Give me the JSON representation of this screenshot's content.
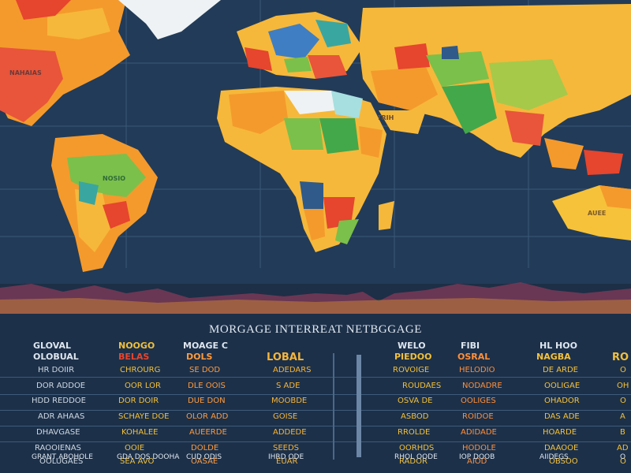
{
  "map": {
    "labels": {
      "north_america": "NAHAIAS",
      "south_america": "NOSIO",
      "middle_east": "TRIH",
      "australia": "AUEE"
    },
    "colors": {
      "ocean": "#223b58",
      "grid": "#3a5878",
      "orange": "#f49a2c",
      "red": "#e6452e",
      "yellow": "#f6b83a",
      "green": "#7bc04a",
      "teal": "#3aa6a0",
      "blue": "#3f7ec2",
      "white": "#eef2f4"
    }
  },
  "table": {
    "title": "MORGAGE INTERREAT NETBGGAGE",
    "columns": [
      {
        "header": "GLOVAL",
        "subheader": "OLOBUAL",
        "color": "#dfe6ef",
        "rows": [
          "HR DOIIR",
          "DOR ADDOE",
          "HDD REDDOE",
          "ADR AHAAS",
          "DHAVGASE",
          "RAOOIENAS",
          "OOLUGAES"
        ]
      },
      {
        "header": "NOOGO",
        "subheader": "BELAS",
        "color": "#f2c03a",
        "rows": [
          "CHROURG",
          "OOR LOR",
          "DOR DOIR",
          "SCHAYE DOE",
          "KOHALEE",
          "OOIE",
          "SEA AVO"
        ]
      },
      {
        "header": "MOAGE C",
        "subheader": "DOLS",
        "color": "#ff9b3d",
        "rows": [
          "SE DOD",
          "DLE OOIS",
          "DUE DON",
          "OLOR ADD",
          "AUEERDE",
          "DOLDE",
          "OASAE"
        ]
      },
      {
        "header": "",
        "subheader": "LOBAL",
        "color": "#f6b53a",
        "rows": [
          "ADEDARS",
          "S ADE",
          "MOOBDE",
          "GOISE",
          "ADDEDE",
          "SEEDS",
          "EUAR"
        ]
      },
      {
        "header": "WELO",
        "subheader": "PIEDOO",
        "color": "#f2c03a",
        "rows": [
          "ROVOIGE",
          "ROUDAES",
          "OSVA DE",
          "ASBOD",
          "RROLDE",
          "OORHDS",
          "RADOR"
        ]
      },
      {
        "header": "FIBI",
        "subheader": "OSRAL",
        "color": "#ff8f3a",
        "rows": [
          "HELODIO",
          "NODADRE",
          "OOLIGES",
          "ROIDOE",
          "ADIDADE",
          "HODOLE",
          "AIOD"
        ]
      },
      {
        "header": "HL HOO",
        "subheader": "NAGBA",
        "color": "#f6c23a",
        "rows": [
          "DE ARDE",
          "OOLIGAE",
          "OHADOR",
          "DAS ADE",
          "HOARDE",
          "DAAOOE",
          "OBSOO"
        ]
      },
      {
        "header": "",
        "subheader": "RO",
        "color": "#f2c03a",
        "rows": [
          "O",
          "OH",
          "O",
          "A",
          "B",
          "AD",
          "O"
        ]
      }
    ],
    "footer": [
      "GRANT ABOHOLE",
      "GDA DOS DOOHA",
      "CUD ODIS",
      "IHRD ODE",
      "RHOL OODE",
      "IOP DOOB",
      "AIIDEGS",
      "O"
    ]
  }
}
